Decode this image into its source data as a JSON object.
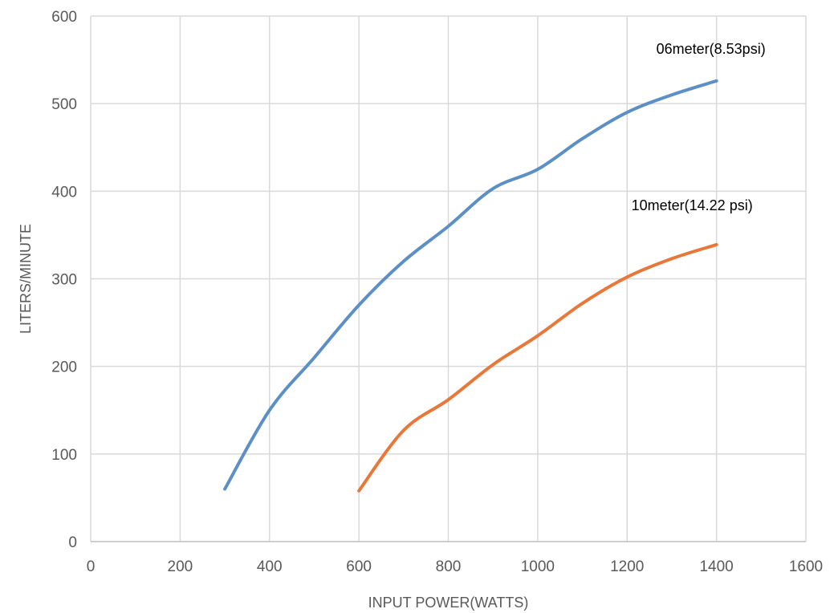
{
  "chart_data": {
    "type": "line",
    "title": "",
    "xlabel": "INPUT POWER(WATTS)",
    "ylabel": "LITERS/MINUTE",
    "xlim": [
      0,
      1600
    ],
    "ylim": [
      0,
      600
    ],
    "x_ticks": [
      0,
      200,
      400,
      600,
      800,
      1000,
      1200,
      1400,
      1600
    ],
    "y_ticks": [
      0,
      100,
      200,
      300,
      400,
      500,
      600
    ],
    "grid": true,
    "series": [
      {
        "name": "06meter(8.53psi)",
        "color": "#5B8FC5",
        "x": [
          300,
          400,
          500,
          600,
          700,
          800,
          900,
          1000,
          1100,
          1200,
          1300,
          1400
        ],
        "y": [
          60,
          150,
          210,
          270,
          320,
          360,
          403,
          425,
          460,
          490,
          510,
          526
        ]
      },
      {
        "name": "10meter(14.22 psi)",
        "color": "#E8783A",
        "x": [
          600,
          700,
          800,
          900,
          1000,
          1100,
          1200,
          1300,
          1400
        ],
        "y": [
          58,
          127,
          162,
          202,
          235,
          272,
          302,
          323,
          339
        ]
      }
    ]
  }
}
